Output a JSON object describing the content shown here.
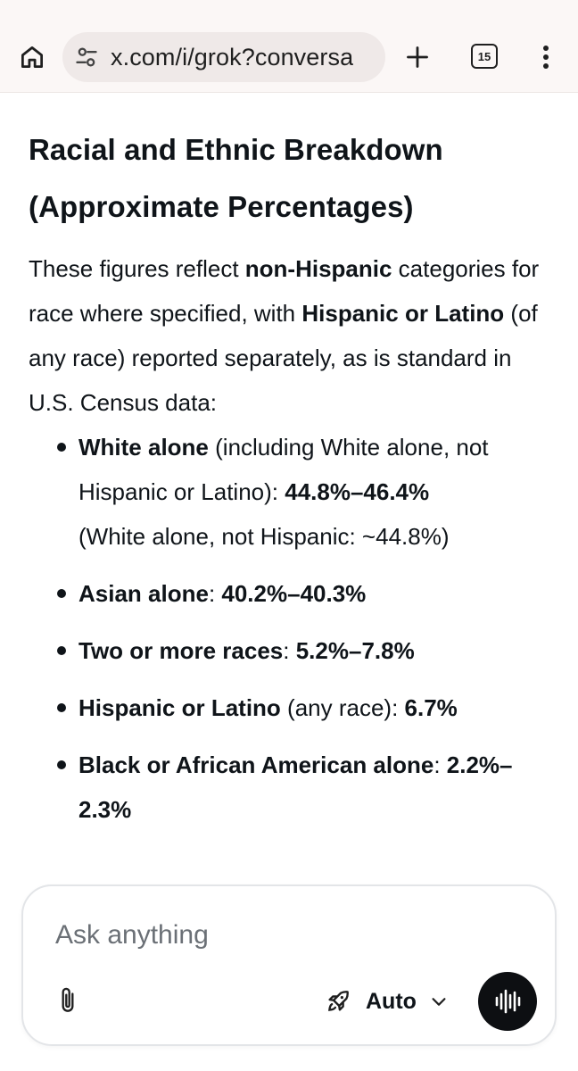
{
  "browser": {
    "url": "x.com/i/grok?conversa",
    "tab_count": "15",
    "icons": [
      "home-icon",
      "tune-icon",
      "plus-icon",
      "tab-switcher-icon",
      "more-vert-icon"
    ]
  },
  "content": {
    "heading_line1": "Racial and Ethnic Breakdown",
    "heading_line2": "(Approximate Percentages)",
    "intro": {
      "t1": "These figures reflect ",
      "b1": "non-Hispanic",
      "t2": " categories for race where specified, with ",
      "b2": "Hispanic or Latino",
      "t3": " (of any race) reported separately, as is standard in U.S. Census data:"
    },
    "bullets": [
      {
        "label": "White alone",
        "text": " (including White alone, not Hispanic or Latino): ",
        "value": "44.8%–46.4%",
        "note": "(White alone, not Hispanic: ~44.8%)"
      },
      {
        "label": "Asian alone",
        "text": ": ",
        "value": "40.2%–40.3%"
      },
      {
        "label": "Two or more races",
        "text": ": ",
        "value": "5.2%–7.8%"
      },
      {
        "label": "Hispanic or Latino",
        "text": " (any race): ",
        "value": "6.7%"
      },
      {
        "label": "Black or African American alone",
        "text": ": ",
        "value": "2.2%–2.3%"
      }
    ]
  },
  "composer": {
    "placeholder": "Ask anything",
    "mode_label": "Auto",
    "icons": [
      "paperclip-icon",
      "rocket-icon",
      "chevron-down-icon",
      "voice-waveform-icon"
    ]
  }
}
